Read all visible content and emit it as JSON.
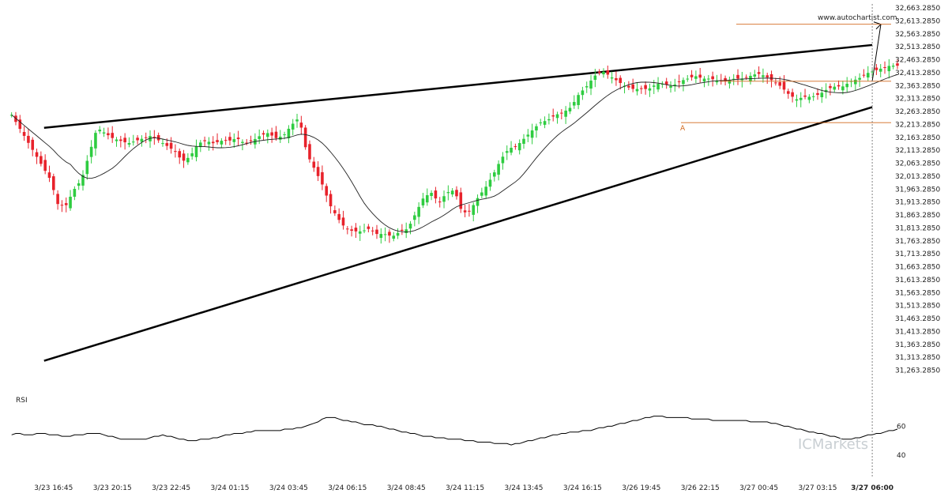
{
  "chart_data": {
    "type": "candlestick",
    "source_text": "www.autochartist.com",
    "watermark": "ICMarkets",
    "pattern_point_label": "A",
    "price_axis": {
      "ylim": [
        31213.285,
        32663.285
      ],
      "ticks": [
        32663.285,
        32613.285,
        32563.285,
        32513.285,
        32463.285,
        32413.285,
        32363.285,
        32313.285,
        32263.285,
        32213.285,
        32163.285,
        32113.285,
        32063.285,
        32013.285,
        31963.285,
        31913.285,
        31863.285,
        31813.285,
        31763.285,
        31713.285,
        31663.285,
        31613.285,
        31563.285,
        31513.285,
        31463.285,
        31413.285,
        31363.285,
        31313.285,
        31263.285
      ],
      "tick_labels": [
        "32,663.2850",
        "32,613.2850",
        "32,563.2850",
        "32,513.2850",
        "32,463.2850",
        "32,413.2850",
        "32,363.2850",
        "32,313.2850",
        "32,263.2850",
        "32,213.2850",
        "32,163.2850",
        "32,113.2850",
        "32,063.2850",
        "32,013.2850",
        "31,963.2850",
        "31,913.2850",
        "31,863.2850",
        "31,813.2850",
        "31,763.2850",
        "31,713.2850",
        "31,663.2850",
        "31,613.2850",
        "31,563.2850",
        "31,513.2850",
        "31,463.2850",
        "31,413.2850",
        "31,363.2850",
        "31,313.2850",
        "31,263.2850"
      ]
    },
    "time_axis": {
      "labels": [
        "3/23 16:45",
        "3/23 20:15",
        "3/23 22:45",
        "3/24 01:15",
        "3/24 03:45",
        "3/24 06:15",
        "3/24 08:45",
        "3/24 11:15",
        "3/24 13:45",
        "3/24 16:15",
        "3/26 19:45",
        "3/26 22:15",
        "3/27 00:45",
        "3/27 03:15",
        "3/27 06:00"
      ],
      "label_index": [
        10,
        24,
        38,
        52,
        66,
        80,
        94,
        108,
        122,
        136,
        150,
        164,
        178,
        192,
        205
      ],
      "highlight_label": "3/27 06:00",
      "bar_count": 210
    },
    "candles_close": [
      32250,
      32200,
      32150,
      32100,
      32050,
      32000,
      31900,
      31900,
      31960,
      32000,
      32100,
      32200,
      32180,
      32160,
      32150,
      32140,
      32150,
      32160,
      32170,
      32150,
      32130,
      32110,
      32070,
      32090,
      32140,
      32150,
      32140,
      32150,
      32150,
      32160,
      32140,
      32150,
      32170,
      32180,
      32160,
      32170,
      32210,
      32240,
      32100,
      32040,
      31980,
      31900,
      31850,
      31810,
      31800,
      31800,
      31810,
      31790,
      31790,
      31780,
      31800,
      31810,
      31870,
      31930,
      31950,
      31910,
      31950,
      31960,
      31870,
      31880,
      31930,
      31970,
      32020,
      32080,
      32120,
      32130,
      32160,
      32190,
      32220,
      32230,
      32250,
      32260,
      32280,
      32330,
      32360,
      32400,
      32420,
      32400,
      32380,
      32360,
      32350,
      32350,
      32350,
      32370,
      32370,
      32360,
      32380,
      32390,
      32400,
      32390,
      32390,
      32380,
      32380,
      32390,
      32390,
      32400,
      32410,
      32400,
      32380,
      32360,
      32330,
      32310,
      32320,
      32320,
      32330,
      32350,
      32360,
      32360,
      32380,
      32390,
      32410,
      32420,
      32430,
      32440,
      32440
    ],
    "ma_overlay": "moving average line",
    "trend_lines": {
      "upper": {
        "start": "3/23 16:45",
        "end": "3/27 06:00",
        "start_price": 32200,
        "end_price": 32520
      },
      "lower": {
        "start_price": 31300,
        "end_price": 32280
      },
      "projection": {
        "start_price": 32380,
        "end_price": 32600
      }
    },
    "horizontal_levels": [
      32600,
      32380,
      32220
    ],
    "rsi": {
      "label": "RSI",
      "ticks": [
        60,
        40
      ],
      "ylim": [
        35,
        75
      ],
      "values": [
        54,
        55,
        54,
        54,
        55,
        55,
        54,
        54,
        53,
        53,
        54,
        54,
        55,
        55,
        54,
        53,
        52,
        51,
        51,
        51,
        51,
        52,
        53,
        54,
        53,
        52,
        51,
        50,
        50,
        51,
        51,
        52,
        53,
        54,
        55,
        55,
        56,
        57,
        57,
        57,
        57,
        57,
        58,
        58,
        59,
        60,
        62,
        64,
        66,
        66,
        65,
        64,
        63,
        62,
        61,
        61,
        60,
        59,
        58,
        57,
        56,
        55,
        54,
        53,
        53,
        52,
        52,
        51,
        51,
        50,
        50,
        49,
        49,
        49,
        48,
        48,
        47,
        48,
        49,
        50,
        51,
        52,
        53,
        54,
        55,
        56,
        56,
        57,
        57,
        58,
        59,
        60,
        61,
        62,
        63,
        64,
        65,
        66,
        67,
        67,
        66,
        66,
        66,
        66,
        65,
        65,
        65,
        64,
        64,
        64,
        64,
        64,
        64,
        63,
        63,
        63,
        62,
        61,
        60,
        59,
        58,
        57,
        56,
        55,
        54,
        53,
        52,
        51,
        51,
        52,
        53,
        54,
        55,
        56,
        57,
        58
      ]
    }
  }
}
